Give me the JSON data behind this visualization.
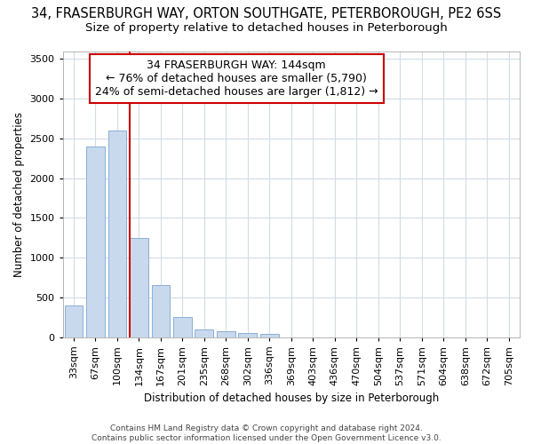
{
  "title_line1": "34, FRASERBURGH WAY, ORTON SOUTHGATE, PETERBOROUGH, PE2 6SS",
  "title_line2": "Size of property relative to detached houses in Peterborough",
  "xlabel": "Distribution of detached houses by size in Peterborough",
  "ylabel": "Number of detached properties",
  "footnote": "Contains HM Land Registry data © Crown copyright and database right 2024.\nContains public sector information licensed under the Open Government Licence v3.0.",
  "categories": [
    "33sqm",
    "67sqm",
    "100sqm",
    "134sqm",
    "167sqm",
    "201sqm",
    "235sqm",
    "268sqm",
    "302sqm",
    "336sqm",
    "369sqm",
    "403sqm",
    "436sqm",
    "470sqm",
    "504sqm",
    "537sqm",
    "571sqm",
    "604sqm",
    "638sqm",
    "672sqm",
    "705sqm"
  ],
  "values": [
    400,
    2400,
    2600,
    1250,
    650,
    250,
    100,
    70,
    55,
    40,
    0,
    0,
    0,
    0,
    0,
    0,
    0,
    0,
    0,
    0,
    0
  ],
  "bar_color": "#c8d9ee",
  "bar_edge_color": "#8aafd4",
  "annotation_text": "34 FRASERBURGH WAY: 144sqm\n← 76% of detached houses are smaller (5,790)\n24% of semi-detached houses are larger (1,812) →",
  "annotation_box_color": "#ffffff",
  "annotation_box_edge": "#cc0000",
  "line_color": "#cc0000",
  "property_line_index": 3,
  "ylim": [
    0,
    3600
  ],
  "yticks": [
    0,
    500,
    1000,
    1500,
    2000,
    2500,
    3000,
    3500
  ],
  "background_color": "#ffffff",
  "plot_bg_color": "#ffffff",
  "grid_color": "#d0dce8",
  "title_fontsize": 10.5,
  "subtitle_fontsize": 9.5,
  "annotation_fontsize": 9,
  "axis_label_fontsize": 8.5,
  "tick_fontsize": 8,
  "footnote_fontsize": 6.5
}
